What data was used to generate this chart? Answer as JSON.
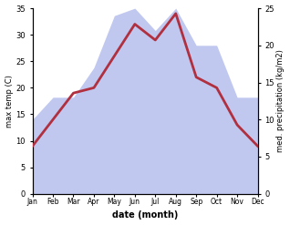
{
  "months": [
    "Jan",
    "Feb",
    "Mar",
    "Apr",
    "May",
    "Jun",
    "Jul",
    "Aug",
    "Sep",
    "Oct",
    "Nov",
    "Dec"
  ],
  "temperature": [
    9,
    14,
    19,
    20,
    26,
    32,
    29,
    34,
    22,
    20,
    13,
    9
  ],
  "precipitation": [
    10,
    13,
    13,
    17,
    24,
    25,
    22,
    25,
    20,
    20,
    13,
    13
  ],
  "temp_color": "#b03040",
  "precip_color_fill": "#c0c8f0",
  "temp_ylim": [
    0,
    35
  ],
  "precip_ylim": [
    0,
    25
  ],
  "temp_yticks": [
    0,
    5,
    10,
    15,
    20,
    25,
    30,
    35
  ],
  "precip_yticks": [
    0,
    5,
    10,
    15,
    20,
    25
  ],
  "xlabel": "date (month)",
  "ylabel_left": "max temp (C)",
  "ylabel_right": "med. precipitation (kg/m2)",
  "linewidth": 2.0,
  "background_color": "#ffffff"
}
